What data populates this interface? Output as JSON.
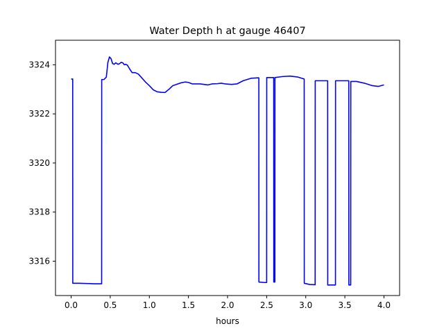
{
  "chart_data": {
    "type": "line",
    "title": "Water Depth h at gauge 46407",
    "xlabel": "hours",
    "ylabel": "",
    "xlim": [
      -0.2,
      4.2
    ],
    "ylim": [
      3314.6,
      3325.0
    ],
    "xticks": [
      0.0,
      0.5,
      1.0,
      1.5,
      2.0,
      2.5,
      3.0,
      3.5,
      4.0
    ],
    "xtick_labels": [
      "0.0",
      "0.5",
      "1.0",
      "1.5",
      "2.0",
      "2.5",
      "3.0",
      "3.5",
      "4.0"
    ],
    "yticks": [
      3316,
      3318,
      3320,
      3322,
      3324
    ],
    "ytick_labels": [
      "3316",
      "3318",
      "3320",
      "3322",
      "3324"
    ],
    "grid": false,
    "series": [
      {
        "color": "#0000ff",
        "points": [
          [
            0.0,
            3323.42
          ],
          [
            0.02,
            3323.42
          ],
          [
            0.021,
            3315.1
          ],
          [
            0.1,
            3315.1
          ],
          [
            0.2,
            3315.09
          ],
          [
            0.3,
            3315.08
          ],
          [
            0.39,
            3315.08
          ],
          [
            0.391,
            3323.4
          ],
          [
            0.42,
            3323.4
          ],
          [
            0.45,
            3323.5
          ],
          [
            0.47,
            3324.1
          ],
          [
            0.49,
            3324.32
          ],
          [
            0.51,
            3324.25
          ],
          [
            0.53,
            3324.05
          ],
          [
            0.55,
            3324.02
          ],
          [
            0.57,
            3324.08
          ],
          [
            0.6,
            3324.02
          ],
          [
            0.62,
            3324.05
          ],
          [
            0.64,
            3324.1
          ],
          [
            0.66,
            3324.08
          ],
          [
            0.68,
            3324.0
          ],
          [
            0.7,
            3324.02
          ],
          [
            0.72,
            3323.98
          ],
          [
            0.75,
            3323.82
          ],
          [
            0.78,
            3323.68
          ],
          [
            0.82,
            3323.68
          ],
          [
            0.86,
            3323.62
          ],
          [
            0.9,
            3323.48
          ],
          [
            0.95,
            3323.3
          ],
          [
            1.0,
            3323.15
          ],
          [
            1.05,
            3322.98
          ],
          [
            1.1,
            3322.9
          ],
          [
            1.15,
            3322.88
          ],
          [
            1.2,
            3322.87
          ],
          [
            1.25,
            3323.0
          ],
          [
            1.3,
            3323.15
          ],
          [
            1.4,
            3323.26
          ],
          [
            1.46,
            3323.3
          ],
          [
            1.5,
            3323.28
          ],
          [
            1.55,
            3323.22
          ],
          [
            1.65,
            3323.22
          ],
          [
            1.75,
            3323.18
          ],
          [
            1.8,
            3323.22
          ],
          [
            1.87,
            3323.23
          ],
          [
            1.92,
            3323.25
          ],
          [
            1.97,
            3323.22
          ],
          [
            2.05,
            3323.2
          ],
          [
            2.12,
            3323.22
          ],
          [
            2.2,
            3323.35
          ],
          [
            2.3,
            3323.45
          ],
          [
            2.39,
            3323.47
          ],
          [
            2.4,
            3323.47
          ],
          [
            2.401,
            3315.15
          ],
          [
            2.48,
            3315.13
          ],
          [
            2.5,
            3315.13
          ],
          [
            2.501,
            3323.48
          ],
          [
            2.59,
            3323.48
          ],
          [
            2.591,
            3315.15
          ],
          [
            2.605,
            3315.15
          ],
          [
            2.606,
            3323.48
          ],
          [
            2.7,
            3323.52
          ],
          [
            2.8,
            3323.54
          ],
          [
            2.9,
            3323.5
          ],
          [
            2.98,
            3323.42
          ],
          [
            2.981,
            3315.1
          ],
          [
            3.05,
            3315.05
          ],
          [
            3.12,
            3315.04
          ],
          [
            3.121,
            3323.35
          ],
          [
            3.2,
            3323.35
          ],
          [
            3.28,
            3323.35
          ],
          [
            3.281,
            3315.03
          ],
          [
            3.35,
            3315.03
          ],
          [
            3.38,
            3315.03
          ],
          [
            3.381,
            3323.35
          ],
          [
            3.45,
            3323.35
          ],
          [
            3.55,
            3323.35
          ],
          [
            3.551,
            3315.03
          ],
          [
            3.575,
            3315.03
          ],
          [
            3.576,
            3323.32
          ],
          [
            3.65,
            3323.32
          ],
          [
            3.75,
            3323.25
          ],
          [
            3.85,
            3323.15
          ],
          [
            3.93,
            3323.12
          ],
          [
            4.0,
            3323.18
          ]
        ]
      }
    ]
  }
}
